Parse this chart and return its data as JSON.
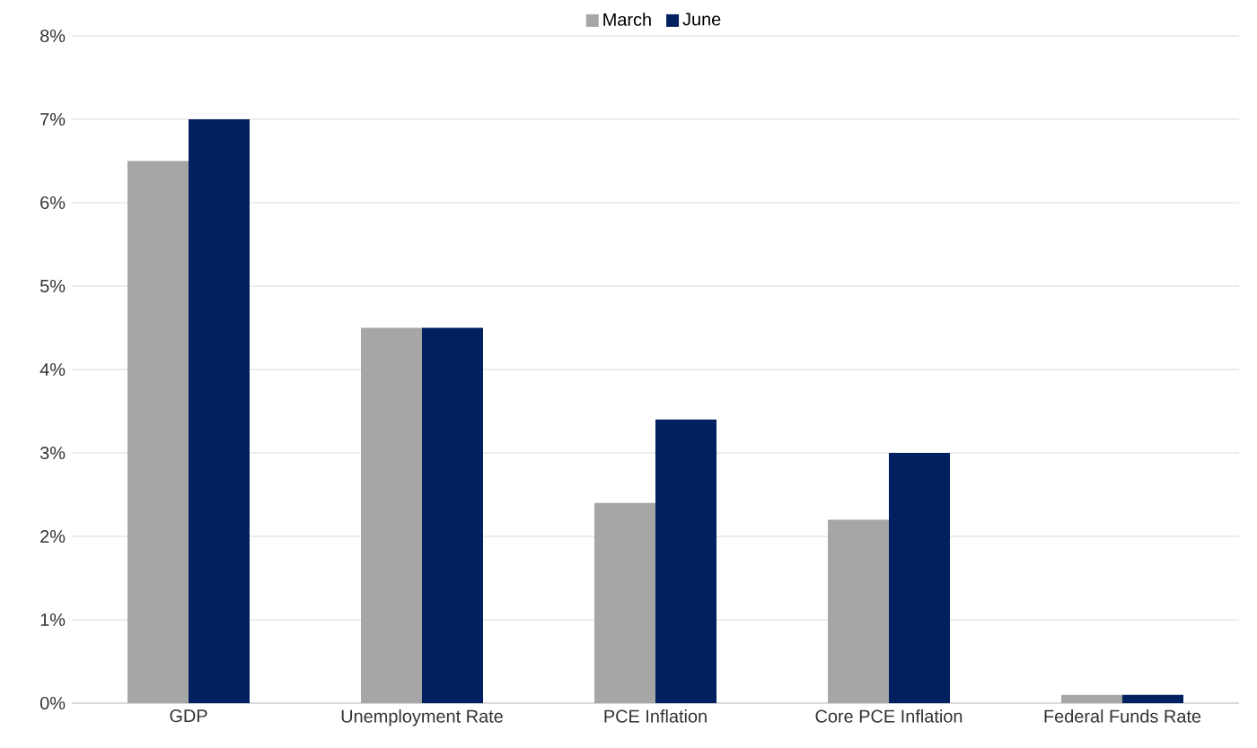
{
  "chart_data": {
    "type": "bar",
    "categories": [
      "GDP",
      "Unemployment Rate",
      "PCE Inflation",
      "Core PCE Inflation",
      "Federal Funds Rate"
    ],
    "series": [
      {
        "name": "March",
        "color": "#a6a6a6",
        "values": [
          6.5,
          4.5,
          2.4,
          2.2,
          0.1
        ]
      },
      {
        "name": "June",
        "color": "#002060",
        "values": [
          7.0,
          4.5,
          3.4,
          3.0,
          0.1
        ]
      }
    ],
    "ylim": [
      0,
      8
    ],
    "yticks": [
      {
        "value": 0,
        "label": "0%"
      },
      {
        "value": 1,
        "label": "1%"
      },
      {
        "value": 2,
        "label": "2%"
      },
      {
        "value": 3,
        "label": "3%"
      },
      {
        "value": 4,
        "label": "4%"
      },
      {
        "value": 5,
        "label": "5%"
      },
      {
        "value": 6,
        "label": "6%"
      },
      {
        "value": 7,
        "label": "7%"
      },
      {
        "value": 8,
        "label": "8%"
      }
    ],
    "grid": "y",
    "legend": "top"
  }
}
